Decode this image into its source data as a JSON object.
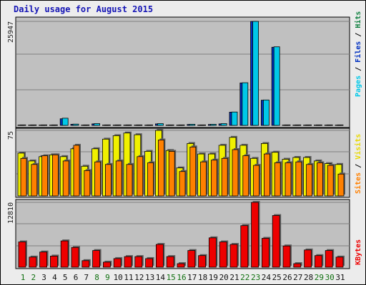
{
  "title": "Daily usage for August 2015",
  "colors": {
    "panel_bg": "#c0c0c0",
    "grid": "#808080",
    "pages": "#00c8e8",
    "files": "#0030c0",
    "visits": "#f0f000",
    "sites": "#ff8000",
    "kbytes": "#ee0000",
    "weekend_day": "#107010",
    "weekday": "#111111"
  },
  "chart_data": [
    {
      "type": "bar",
      "name": "pages-files-hits",
      "categories": [
        "1",
        "2",
        "3",
        "4",
        "5",
        "6",
        "7",
        "8",
        "9",
        "10",
        "11",
        "12",
        "13",
        "14",
        "15",
        "16",
        "17",
        "18",
        "19",
        "20",
        "21",
        "22",
        "23",
        "24",
        "25",
        "26",
        "27",
        "28",
        "29",
        "30",
        "31"
      ],
      "ymax_label": "25947",
      "ylim": [
        0,
        25947
      ],
      "series": [
        {
          "name": "Pages",
          "values": [
            80,
            80,
            80,
            80,
            1650,
            280,
            80,
            380,
            80,
            80,
            80,
            80,
            80,
            380,
            80,
            80,
            230,
            80,
            230,
            380,
            3300,
            10600,
            25947,
            6300,
            19500,
            80,
            80,
            80,
            80,
            80,
            80
          ]
        },
        {
          "name": "Files",
          "values": [
            120,
            120,
            120,
            120,
            1800,
            320,
            120,
            450,
            120,
            120,
            120,
            120,
            120,
            450,
            120,
            120,
            280,
            120,
            280,
            450,
            3350,
            10650,
            25947,
            6350,
            19600,
            120,
            120,
            120,
            120,
            120,
            120
          ]
        }
      ],
      "labels": [
        "Pages",
        "Files",
        "Hits"
      ]
    },
    {
      "type": "bar",
      "name": "visits-sites",
      "categories": [
        "1",
        "2",
        "3",
        "4",
        "5",
        "6",
        "7",
        "8",
        "9",
        "10",
        "11",
        "12",
        "13",
        "14",
        "15",
        "16",
        "17",
        "18",
        "19",
        "20",
        "21",
        "22",
        "23",
        "24",
        "25",
        "26",
        "27",
        "28",
        "29",
        "30",
        "31"
      ],
      "ymax_label": "75",
      "ylim": [
        0,
        75
      ],
      "series": [
        {
          "name": "Visits",
          "values": [
            49,
            40,
            45,
            47,
            45,
            54,
            34,
            54,
            65,
            69,
            72,
            70,
            51,
            75,
            52,
            32,
            60,
            48,
            48,
            58,
            67,
            58,
            43,
            60,
            50,
            42,
            44,
            44,
            40,
            37,
            36
          ]
        },
        {
          "name": "Sites",
          "values": [
            43,
            36,
            46,
            47,
            40,
            58,
            29,
            39,
            36,
            40,
            36,
            45,
            38,
            64,
            51,
            28,
            56,
            39,
            41,
            43,
            53,
            46,
            35,
            48,
            38,
            38,
            39,
            36,
            38,
            35,
            25
          ]
        }
      ],
      "labels": [
        "Sites",
        "Visits"
      ]
    },
    {
      "type": "bar",
      "name": "kbytes",
      "categories": [
        "1",
        "2",
        "3",
        "4",
        "5",
        "6",
        "7",
        "8",
        "9",
        "10",
        "11",
        "12",
        "13",
        "14",
        "15",
        "16",
        "17",
        "18",
        "19",
        "20",
        "21",
        "22",
        "23",
        "24",
        "25",
        "26",
        "27",
        "28",
        "29",
        "30",
        "31"
      ],
      "ymax_label": "12810",
      "ylim": [
        0,
        12810
      ],
      "series": [
        {
          "name": "KBytes",
          "values": [
            5000,
            2000,
            3000,
            2200,
            5200,
            3900,
            1300,
            3300,
            1000,
            1700,
            2100,
            2100,
            1700,
            4500,
            2100,
            700,
            3300,
            2300,
            5800,
            5000,
            4500,
            8200,
            12810,
            5700,
            10200,
            4200,
            700,
            3400,
            2300,
            3300,
            2000
          ]
        }
      ],
      "labels": [
        "KBytes"
      ]
    }
  ],
  "x_axis": {
    "days": [
      "1",
      "2",
      "3",
      "4",
      "5",
      "6",
      "7",
      "8",
      "9",
      "10",
      "11",
      "12",
      "13",
      "14",
      "15",
      "16",
      "17",
      "18",
      "19",
      "20",
      "21",
      "22",
      "23",
      "24",
      "25",
      "26",
      "27",
      "28",
      "29",
      "30",
      "31"
    ],
    "weekend": [
      true,
      true,
      false,
      false,
      false,
      false,
      false,
      true,
      true,
      false,
      false,
      false,
      false,
      false,
      true,
      true,
      false,
      false,
      false,
      false,
      false,
      true,
      true,
      false,
      false,
      false,
      false,
      false,
      true,
      true,
      false
    ]
  }
}
